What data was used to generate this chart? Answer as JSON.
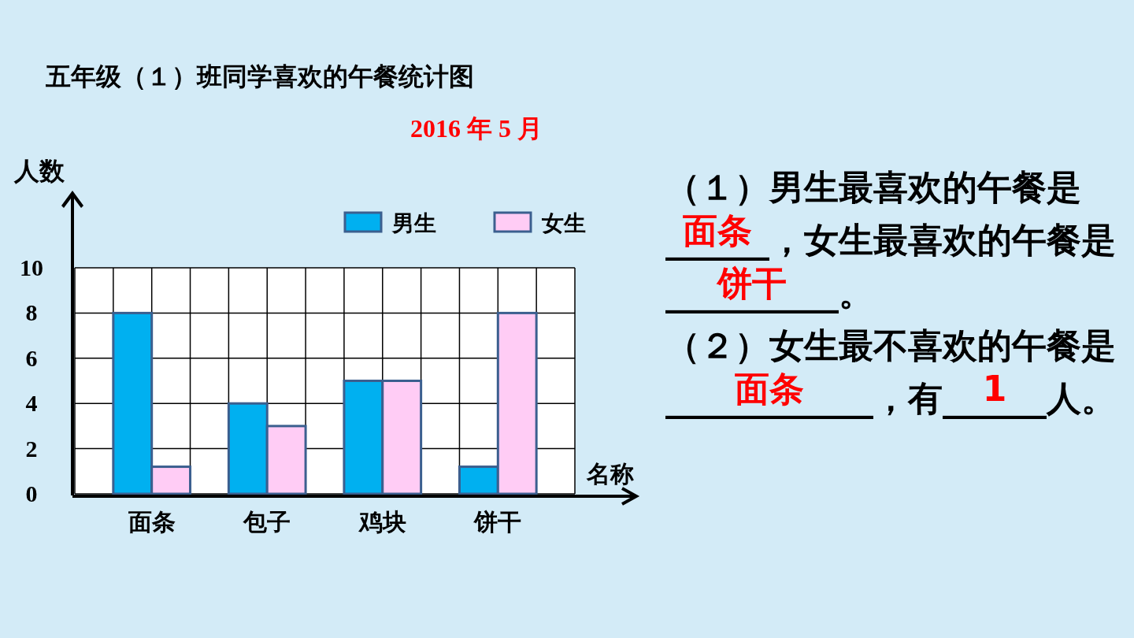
{
  "chart_data": {
    "type": "bar",
    "title": "五年级（１）班同学喜欢的午餐统计图",
    "subtitle": "2016 年 5 月",
    "ylabel": "人数",
    "xlabel": "名称",
    "categories": [
      "面条",
      "包子",
      "鸡块",
      "饼干"
    ],
    "series": [
      {
        "name": "男生",
        "color": "#00b0f0",
        "values": [
          8,
          4,
          5,
          1.2
        ]
      },
      {
        "name": "女生",
        "color": "#ffccf5",
        "values": [
          1.2,
          3,
          5,
          8
        ]
      }
    ],
    "ylim": [
      0,
      10
    ],
    "yticks": [
      0,
      2,
      4,
      6,
      8,
      10
    ],
    "grid": true,
    "legend": "top right",
    "annotations": [
      "（１）男生最喜欢的午餐是______，女生最喜欢的午餐是__________。",
      "面条",
      "饼干",
      "（２）女生最不喜欢的午餐是____________，有______人。",
      "面条",
      "1"
    ]
  }
}
